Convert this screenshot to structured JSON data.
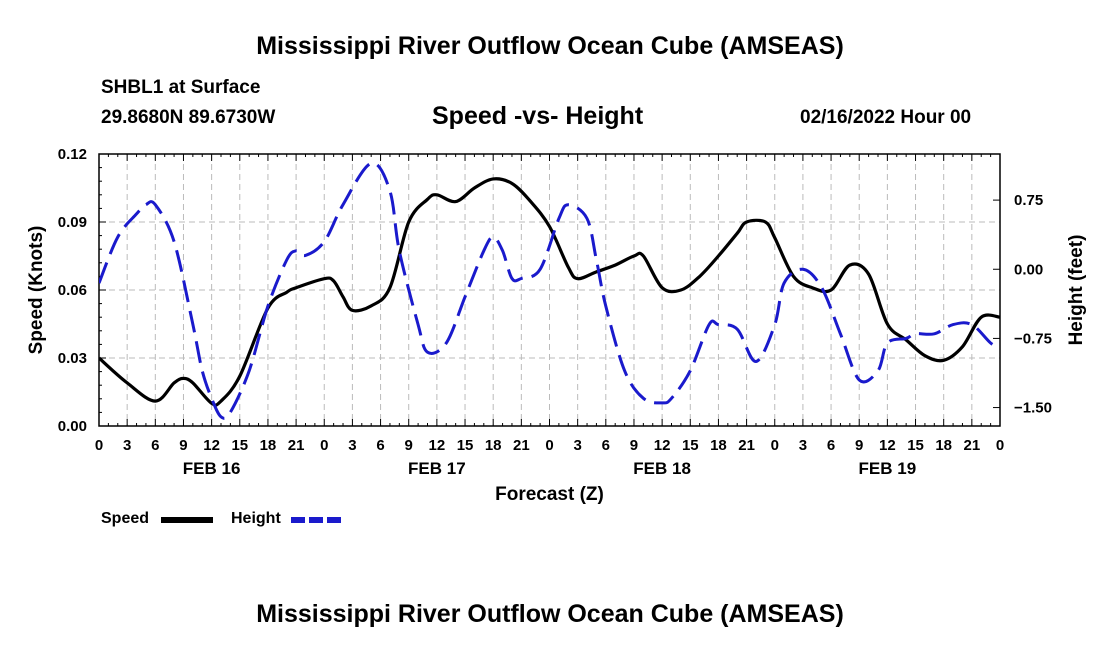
{
  "page": {
    "title_top": "Mississippi River Outflow Ocean Cube (AMSEAS)",
    "title_bottom": "Mississippi River Outflow Ocean Cube (AMSEAS)",
    "station": "SHBL1 at Surface",
    "coords": "29.8680N  89.6730W",
    "subtitle": "Speed -vs- Height",
    "run_time": "02/16/2022 Hour 00"
  },
  "legend": {
    "speed": "Speed",
    "height": "Height"
  },
  "colors": {
    "speed": "#000000",
    "height": "#1a1acc",
    "grid": "#bbbbbb"
  },
  "chart_data": {
    "type": "line",
    "title": "Speed -vs- Height",
    "xlabel": "Forecast (Z)",
    "ylabel": "Speed (Knots)",
    "y2label": "Height (feet)",
    "xlim": [
      0,
      96
    ],
    "ylim": [
      0,
      0.12
    ],
    "y2lim": [
      -1.7,
      1.25
    ],
    "y_ticks": [
      "0.00",
      "0.03",
      "0.06",
      "0.09",
      "0.12"
    ],
    "y_tick_values": [
      0,
      0.03,
      0.06,
      0.09,
      0.12
    ],
    "y2_ticks": [
      "−1.50",
      "−0.75",
      "0.00",
      "0.75"
    ],
    "y2_tick_values": [
      -1.5,
      -0.75,
      0,
      0.75
    ],
    "x_ticks": [
      "0",
      "3",
      "6",
      "9",
      "12",
      "15",
      "18",
      "21",
      "0",
      "3",
      "6",
      "9",
      "12",
      "15",
      "18",
      "21",
      "0",
      "3",
      "6",
      "9",
      "12",
      "15",
      "18",
      "21",
      "0",
      "3",
      "6",
      "9",
      "12",
      "15",
      "18",
      "21",
      "0"
    ],
    "day_labels": [
      {
        "label": "FEB 16",
        "x": 12
      },
      {
        "label": "FEB 17",
        "x": 36
      },
      {
        "label": "FEB 18",
        "x": 60
      },
      {
        "label": "FEB 19",
        "x": 84
      }
    ],
    "series": [
      {
        "name": "Speed",
        "axis": "left",
        "style": "solid",
        "x": [
          0,
          3,
          6,
          8,
          9,
          10,
          12,
          13,
          15,
          18,
          20,
          21,
          24,
          25,
          26,
          27,
          29,
          31,
          33,
          35,
          36,
          38,
          40,
          42,
          44,
          46,
          48,
          50,
          51,
          53,
          55,
          57,
          58,
          60,
          62,
          64,
          66,
          68,
          69,
          71,
          72,
          74,
          76,
          78,
          80,
          82,
          84,
          86,
          88,
          90,
          92,
          94,
          96
        ],
        "values": [
          0.03,
          0.019,
          0.011,
          0.019,
          0.021,
          0.019,
          0.01,
          0.011,
          0.022,
          0.052,
          0.059,
          0.061,
          0.065,
          0.064,
          0.057,
          0.051,
          0.053,
          0.061,
          0.09,
          0.1,
          0.102,
          0.099,
          0.105,
          0.109,
          0.107,
          0.099,
          0.088,
          0.07,
          0.065,
          0.068,
          0.071,
          0.075,
          0.075,
          0.061,
          0.06,
          0.066,
          0.075,
          0.085,
          0.09,
          0.09,
          0.083,
          0.066,
          0.061,
          0.06,
          0.071,
          0.067,
          0.045,
          0.038,
          0.031,
          0.029,
          0.035,
          0.048,
          0.048
        ]
      },
      {
        "name": "Height",
        "axis": "right",
        "style": "dashed",
        "x": [
          0,
          2,
          4,
          5,
          6,
          8,
          10,
          11,
          12,
          13,
          14,
          16,
          18,
          20,
          21,
          22,
          24,
          26,
          29,
          31,
          32,
          34,
          35,
          37,
          39,
          41,
          42,
          43,
          44,
          45,
          47,
          49,
          50,
          52,
          53,
          54,
          56,
          58,
          60,
          61,
          63,
          65,
          66,
          68,
          70,
          72,
          73,
          75,
          77,
          79,
          81,
          83,
          84,
          86,
          87,
          89,
          91,
          93,
          95,
          96
        ],
        "values": [
          -0.15,
          0.35,
          0.6,
          0.7,
          0.7,
          0.3,
          -0.6,
          -1.1,
          -1.4,
          -1.6,
          -1.55,
          -1.1,
          -0.4,
          0.1,
          0.2,
          0.15,
          0.3,
          0.7,
          1.15,
          0.85,
          0.2,
          -0.6,
          -0.9,
          -0.8,
          -0.3,
          0.2,
          0.35,
          0.2,
          -0.1,
          -0.1,
          0.0,
          0.55,
          0.7,
          0.55,
          0.1,
          -0.4,
          -1.1,
          -1.4,
          -1.45,
          -1.4,
          -1.1,
          -0.6,
          -0.6,
          -0.65,
          -1.0,
          -0.6,
          -0.15,
          0.0,
          -0.2,
          -0.7,
          -1.2,
          -1.1,
          -0.8,
          -0.75,
          -0.7,
          -0.7,
          -0.6,
          -0.6,
          -0.8,
          -0.85
        ]
      }
    ]
  }
}
